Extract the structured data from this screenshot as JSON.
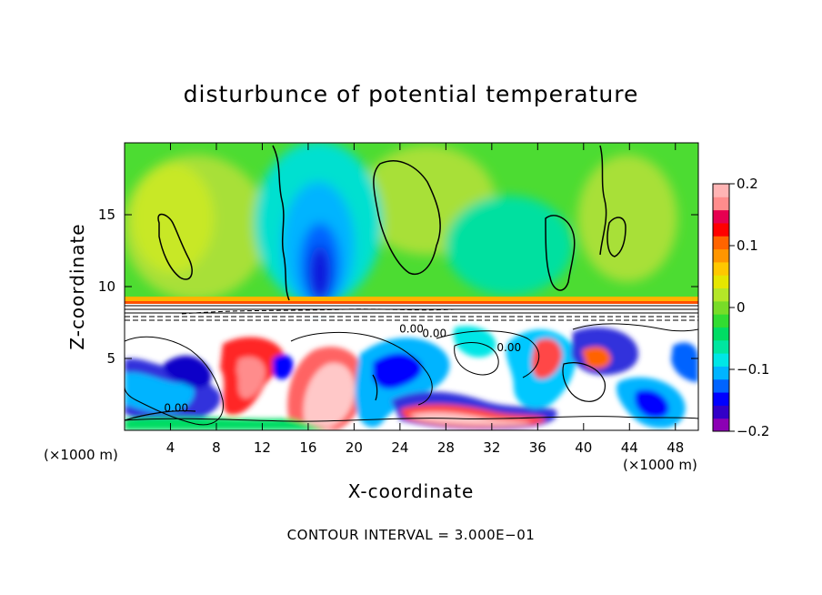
{
  "chart_data": {
    "type": "heatmap",
    "title": "disturbunce of potential temperature",
    "xlabel": "X-coordinate",
    "ylabel": "Z-coordinate",
    "x_unit": "(×1000 m)",
    "x_unit_right": "(×1000 m)",
    "xlim": [
      0,
      50
    ],
    "ylim": [
      0,
      20
    ],
    "x_ticks": [
      4,
      8,
      12,
      16,
      20,
      24,
      28,
      32,
      36,
      40,
      44,
      48
    ],
    "y_ticks": [
      5,
      10,
      15
    ],
    "colorbar": {
      "range": [
        -0.2,
        0.2
      ],
      "ticks": [
        {
          "value": 0.2,
          "label": "0.2"
        },
        {
          "value": 0.1,
          "label": "0.1"
        },
        {
          "value": 0,
          "label": "0"
        },
        {
          "value": -0.1,
          "label": "−0.1"
        },
        {
          "value": -0.2,
          "label": "−0.2"
        }
      ],
      "colors": [
        "#8c00b4",
        "#3200c8",
        "#0000ff",
        "#0064ff",
        "#00b4ff",
        "#00e6e6",
        "#00e6a0",
        "#00dc64",
        "#32dc32",
        "#78dc28",
        "#b4e628",
        "#e6e600",
        "#ffc800",
        "#ff9600",
        "#ff6400",
        "#ff0000",
        "#e60050",
        "#ff8c8c",
        "#ffb4b4"
      ]
    },
    "contour_labels": [
      {
        "x": 4.5,
        "y": 1.3,
        "text": "0.00"
      },
      {
        "x": 27,
        "y": 6.5,
        "text": "0.00"
      },
      {
        "x": 33.5,
        "y": 5.5,
        "text": "0.00"
      },
      {
        "x": 25,
        "y": 6.8,
        "text": "0.00"
      }
    ],
    "contour_interval_label": "CONTOUR INTERVAL = 3.000E−01"
  }
}
